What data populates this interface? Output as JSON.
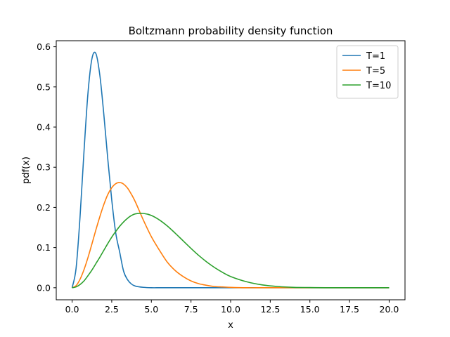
{
  "chart_data": {
    "type": "line",
    "title": "Boltzmann probability density function",
    "xlabel": "x",
    "ylabel": "pdf(x)",
    "xlim": [
      -1.0,
      21.0
    ],
    "ylim": [
      -0.03,
      0.615
    ],
    "xticks": [
      0.0,
      2.5,
      5.0,
      7.5,
      10.0,
      12.5,
      15.0,
      17.5,
      20.0
    ],
    "xtick_labels": [
      "0.0",
      "2.5",
      "5.0",
      "7.5",
      "10.0",
      "12.5",
      "15.0",
      "17.5",
      "20.0"
    ],
    "yticks": [
      0.0,
      0.1,
      0.2,
      0.3,
      0.4,
      0.5,
      0.6
    ],
    "ytick_labels": [
      "0.0",
      "0.1",
      "0.2",
      "0.3",
      "0.4",
      "0.5",
      "0.6"
    ],
    "grid": false,
    "legend_position": "top-right",
    "x": [
      0.0,
      0.25,
      0.5,
      0.75,
      1.0,
      1.25,
      1.5,
      1.75,
      2.0,
      2.25,
      2.5,
      2.75,
      3.0,
      3.25,
      3.5,
      3.75,
      4.0,
      4.5,
      5.0,
      5.5,
      6.0,
      6.5,
      7.0,
      7.5,
      8.0,
      8.5,
      9.0,
      9.5,
      10.0,
      11.0,
      12.0,
      13.0,
      14.0,
      15.0,
      16.0,
      17.0,
      18.0,
      19.0,
      20.0
    ],
    "series": [
      {
        "name": "T=1",
        "color": "#1f77b4",
        "values": [
          0.0,
          0.048,
          0.176,
          0.339,
          0.484,
          0.57,
          0.583,
          0.529,
          0.432,
          0.321,
          0.219,
          0.137,
          0.089,
          0.041,
          0.02,
          0.009,
          0.004,
          0.001,
          0.0,
          0.0,
          0.0,
          0.0,
          0.0,
          0.0,
          0.0,
          0.0,
          0.0,
          0.0,
          0.0,
          0.0,
          0.0,
          0.0,
          0.0,
          0.0,
          0.0,
          0.0,
          0.0,
          0.0,
          0.0
        ]
      },
      {
        "name": "T=5",
        "color": "#ff7f0e",
        "values": [
          0.0,
          0.005,
          0.021,
          0.045,
          0.075,
          0.109,
          0.144,
          0.177,
          0.207,
          0.232,
          0.249,
          0.259,
          0.262,
          0.258,
          0.248,
          0.232,
          0.213,
          0.168,
          0.127,
          0.094,
          0.064,
          0.043,
          0.028,
          0.017,
          0.01,
          0.006,
          0.003,
          0.002,
          0.001,
          0.0,
          0.0,
          0.0,
          0.0,
          0.0,
          0.0,
          0.0,
          0.0,
          0.0,
          0.0
        ]
      },
      {
        "name": "T=10",
        "color": "#2ca02c",
        "values": [
          0.0,
          0.002,
          0.008,
          0.017,
          0.03,
          0.044,
          0.06,
          0.076,
          0.093,
          0.11,
          0.126,
          0.14,
          0.153,
          0.164,
          0.173,
          0.18,
          0.184,
          0.185,
          0.18,
          0.169,
          0.154,
          0.136,
          0.117,
          0.098,
          0.08,
          0.064,
          0.05,
          0.038,
          0.028,
          0.015,
          0.007,
          0.003,
          0.001,
          0.0005,
          0.0,
          0.0,
          0.0,
          0.0,
          0.0
        ]
      }
    ]
  }
}
